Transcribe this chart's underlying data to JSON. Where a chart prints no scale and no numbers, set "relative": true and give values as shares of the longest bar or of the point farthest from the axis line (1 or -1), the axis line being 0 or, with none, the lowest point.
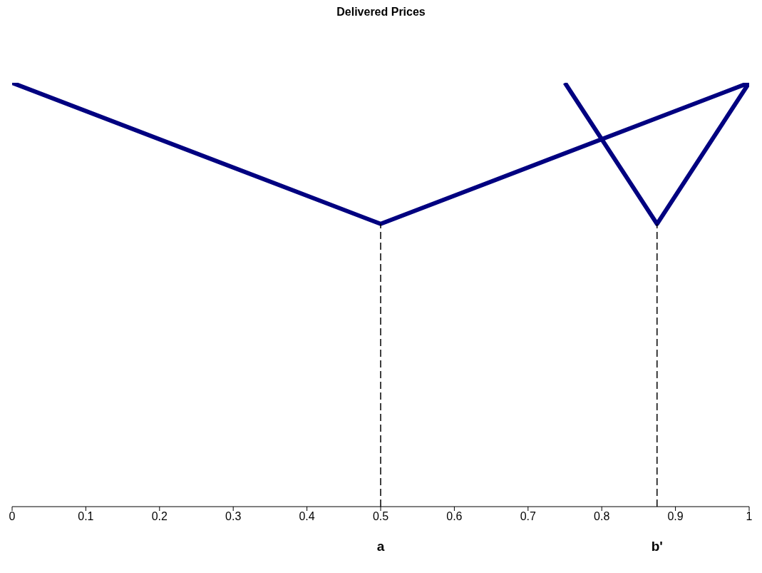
{
  "chart_data": {
    "type": "line",
    "title": "Delivered Prices",
    "relative": true,
    "xlim": [
      0,
      1
    ],
    "xticks": [
      0,
      0.1,
      0.2,
      0.3,
      0.4,
      0.5,
      0.6,
      0.7,
      0.8,
      0.9,
      1
    ],
    "series": [
      {
        "color": "#000080",
        "x": [
          0,
          0.5,
          1
        ],
        "values": [
          1,
          0.667,
          1
        ]
      },
      {
        "color": "#000080",
        "x": [
          0.75,
          0.875,
          1
        ],
        "values": [
          1,
          0.667,
          1
        ]
      }
    ],
    "ref_lines": [
      {
        "axis": "x",
        "value": 0.5,
        "label": "a",
        "color": "#000000",
        "line_style": "dashed"
      },
      {
        "axis": "x",
        "value": 0.875,
        "label": "b'",
        "color": "#000000",
        "line_style": "dashed"
      }
    ],
    "marker": "none",
    "line_style": "solid"
  }
}
